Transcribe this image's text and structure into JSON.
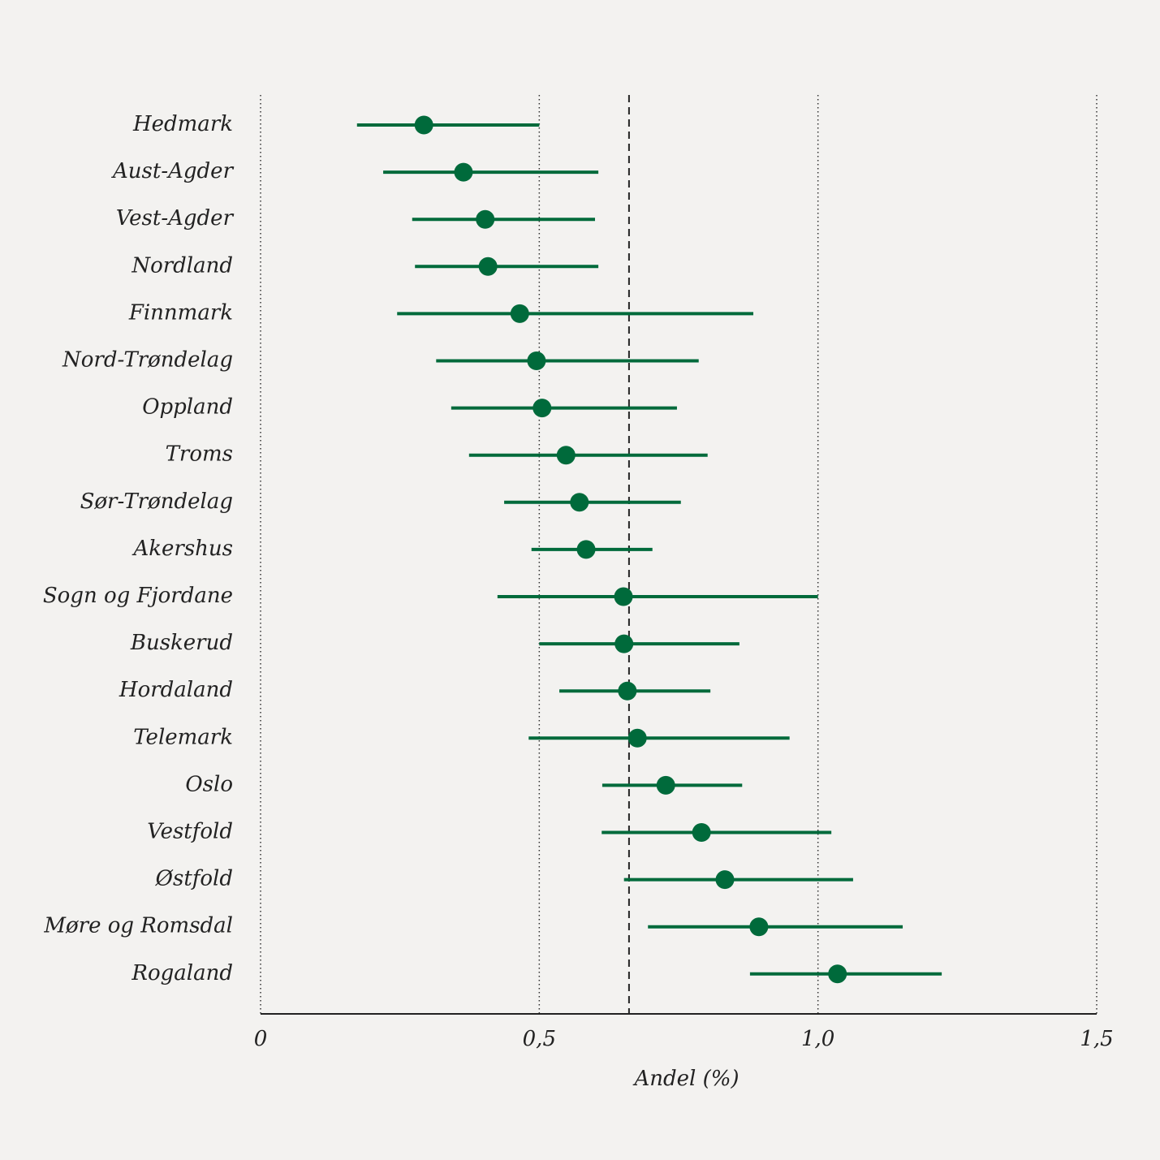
{
  "chart_data": {
    "type": "dot-interval",
    "x_label": "Andel (%)",
    "categories": [
      "Hedmark",
      "Aust-Agder",
      "Vest-Agder",
      "Nordland",
      "Finnmark",
      "Nord-Trøndelag",
      "Oppland",
      "Troms",
      "Sør-Trøndelag",
      "Akershus",
      "Sogn og Fjordane",
      "Buskerud",
      "Hordaland",
      "Telemark",
      "Oslo",
      "Vestfold",
      "Østfold",
      "Møre og Romsdal",
      "Rogaland"
    ],
    "values": [
      0.293,
      0.364,
      0.403,
      0.408,
      0.465,
      0.495,
      0.505,
      0.548,
      0.572,
      0.584,
      0.651,
      0.652,
      0.658,
      0.676,
      0.727,
      0.791,
      0.833,
      0.894,
      1.035
    ],
    "lower": [
      0.173,
      0.22,
      0.272,
      0.277,
      0.245,
      0.315,
      0.342,
      0.374,
      0.437,
      0.486,
      0.425,
      0.5,
      0.536,
      0.481,
      0.613,
      0.612,
      0.652,
      0.695,
      0.878
    ],
    "upper": [
      0.5,
      0.606,
      0.6,
      0.606,
      0.884,
      0.786,
      0.747,
      0.802,
      0.754,
      0.703,
      1.0,
      0.859,
      0.807,
      0.949,
      0.864,
      1.024,
      1.063,
      1.152,
      1.222
    ],
    "reference_line": 0.661,
    "color": "#006a3b",
    "xlim": [
      0,
      1.5
    ],
    "xticks": [
      0,
      {
        "value": 0.5,
        "label": "0,5"
      },
      {
        "value": 1.0,
        "label": "1,0"
      },
      {
        "value": 1.5,
        "label": "1,5"
      }
    ],
    "grid": true
  }
}
